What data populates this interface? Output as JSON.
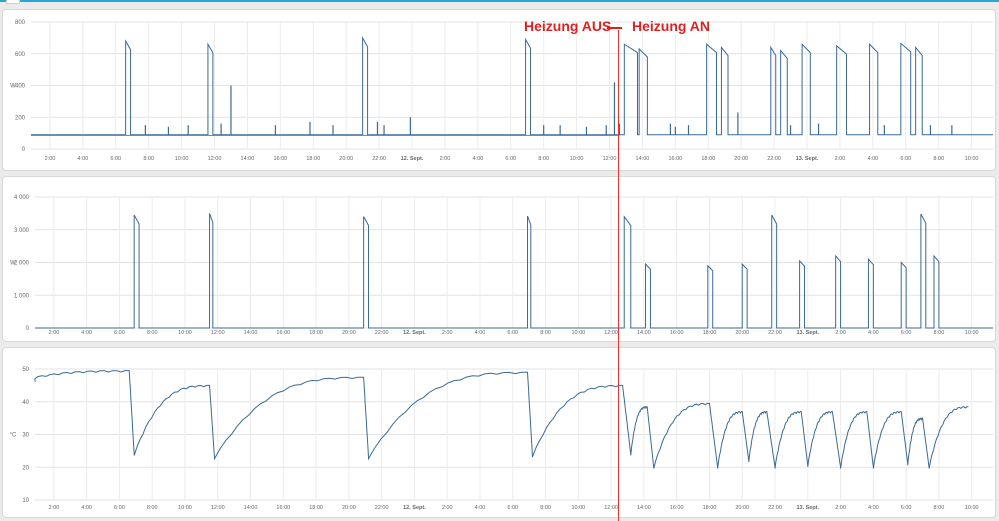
{
  "annotations": {
    "left": "Heizung AUS",
    "right": "Heizung AN",
    "color": "#e02020"
  },
  "chart_data": [
    {
      "type": "line",
      "ylabel": "W",
      "ylim": [
        0,
        800
      ],
      "yticks": [
        "0",
        "200",
        "400",
        "600",
        "800"
      ],
      "xticks": [
        "2:00",
        "4:00",
        "6:00",
        "8:00",
        "10:00",
        "12:00",
        "14:00",
        "16:00",
        "18:00",
        "20:00",
        "22:00",
        "12. Sept.",
        "2:00",
        "4:00",
        "6:00",
        "8:00",
        "10:00",
        "12:00",
        "14:00",
        "16:00",
        "18:00",
        "20:00",
        "22:00",
        "13. Sept.",
        "2:00",
        "4:00",
        "6:00",
        "8:00",
        "10:00"
      ],
      "grid": true,
      "series": [
        {
          "color": "#3a6a96",
          "base": 90,
          "pulses": [
            [
              6.6,
              6.9,
              680
            ],
            [
              11.6,
              11.9,
              660
            ],
            [
              21.0,
              21.3,
              700
            ],
            [
              30.9,
              31.2,
              690
            ],
            [
              36.9,
              37.7,
              660
            ],
            [
              37.8,
              38.3,
              630
            ],
            [
              41.9,
              42.5,
              660
            ],
            [
              42.8,
              43.2,
              640
            ],
            [
              45.8,
              46.1,
              640
            ],
            [
              46.4,
              46.8,
              620
            ],
            [
              47.7,
              48.2,
              660
            ],
            [
              49.8,
              50.4,
              650
            ],
            [
              51.8,
              52.3,
              660
            ],
            [
              53.7,
              54.3,
              665
            ],
            [
              54.6,
              55.0,
              640
            ]
          ],
          "spikes": [
            [
              7.8,
              150
            ],
            [
              9.2,
              140
            ],
            [
              10.4,
              150
            ],
            [
              12.4,
              160
            ],
            [
              13.0,
              400
            ],
            [
              15.7,
              150
            ],
            [
              17.8,
              170
            ],
            [
              19.2,
              150
            ],
            [
              21.9,
              170
            ],
            [
              22.3,
              150
            ],
            [
              23.9,
              200
            ],
            [
              32.0,
              150
            ],
            [
              33.0,
              150
            ],
            [
              34.6,
              140
            ],
            [
              35.8,
              150
            ],
            [
              36.3,
              420
            ],
            [
              36.6,
              160
            ],
            [
              39.7,
              160
            ],
            [
              40.0,
              140
            ],
            [
              40.8,
              150
            ],
            [
              43.8,
              230
            ],
            [
              47.0,
              150
            ],
            [
              48.7,
              160
            ],
            [
              52.7,
              150
            ],
            [
              55.5,
              150
            ],
            [
              56.8,
              150
            ]
          ]
        },
        {
          "color": "#4caf50",
          "flat": 85,
          "flat_end": 36.6
        }
      ]
    },
    {
      "type": "line",
      "ylabel": "W",
      "ylim": [
        0,
        4000
      ],
      "yticks": [
        "0",
        "1 000",
        "2 000",
        "3 000",
        "4 000"
      ],
      "xticks": [
        "2:00",
        "4:00",
        "6:00",
        "8:00",
        "10:00",
        "12:00",
        "14:00",
        "16:00",
        "18:00",
        "20:00",
        "22:00",
        "12. Sept.",
        "2:00",
        "4:00",
        "6:00",
        "8:00",
        "10:00",
        "12:00",
        "14:00",
        "16:00",
        "18:00",
        "20:00",
        "22:00",
        "13. Sept.",
        "2:00",
        "4:00",
        "6:00",
        "8:00",
        "10:00"
      ],
      "grid": true,
      "series": [
        {
          "color": "#3a6a96",
          "pulses": [
            [
              6.9,
              7.2,
              3450
            ],
            [
              11.5,
              11.7,
              3500
            ],
            [
              20.9,
              21.2,
              3400
            ],
            [
              30.9,
              31.1,
              3420
            ],
            [
              36.8,
              37.2,
              3400
            ],
            [
              38.1,
              38.4,
              1950
            ],
            [
              41.9,
              42.2,
              1900
            ],
            [
              44.0,
              44.3,
              1950
            ],
            [
              45.8,
              46.1,
              3450
            ],
            [
              47.5,
              47.8,
              2050
            ],
            [
              49.7,
              50.0,
              2200
            ],
            [
              51.7,
              52.0,
              2100
            ],
            [
              53.7,
              54.0,
              2000
            ],
            [
              54.9,
              55.2,
              3480
            ],
            [
              55.7,
              56.0,
              2200
            ]
          ]
        }
      ]
    },
    {
      "type": "line",
      "ylabel": "°C",
      "ylim": [
        10,
        50
      ],
      "yticks": [
        "10",
        "20",
        "30",
        "40",
        "50"
      ],
      "xticks": [
        "2:00",
        "4:00",
        "6:00",
        "8:00",
        "10:00",
        "12:00",
        "14:00",
        "16:00",
        "18:00",
        "20:00",
        "22:00",
        "12. Sept.",
        "2:00",
        "4:00",
        "6:00",
        "8:00",
        "10:00",
        "12:00",
        "14:00",
        "16:00",
        "18:00",
        "20:00",
        "22:00",
        "13. Sept.",
        "2:00",
        "4:00",
        "6:00",
        "8:00",
        "10:00"
      ],
      "grid": true,
      "series": [
        {
          "color": "#3a6a96",
          "events": [
            [
              0,
              46.5
            ],
            [
              6.6,
              49.5
            ],
            [
              6.9,
              24
            ],
            [
              11.5,
              45
            ],
            [
              11.8,
              23
            ],
            [
              20.9,
              47.5
            ],
            [
              21.2,
              23
            ],
            [
              30.9,
              49
            ],
            [
              31.2,
              23.5
            ],
            [
              36.7,
              45
            ],
            [
              37.2,
              24
            ],
            [
              38.2,
              38.5
            ],
            [
              38.6,
              20
            ],
            [
              42.0,
              39.5
            ],
            [
              42.5,
              20
            ],
            [
              44.0,
              37
            ],
            [
              44.4,
              22
            ],
            [
              45.5,
              37
            ],
            [
              46.0,
              20
            ],
            [
              47.6,
              37
            ],
            [
              48.0,
              20.5
            ],
            [
              49.5,
              37
            ],
            [
              50.0,
              20
            ],
            [
              51.6,
              37
            ],
            [
              52.0,
              20
            ],
            [
              53.7,
              37
            ],
            [
              54.1,
              21
            ],
            [
              55.0,
              35
            ],
            [
              55.4,
              20
            ],
            [
              57.8,
              38.5
            ]
          ]
        }
      ]
    }
  ]
}
